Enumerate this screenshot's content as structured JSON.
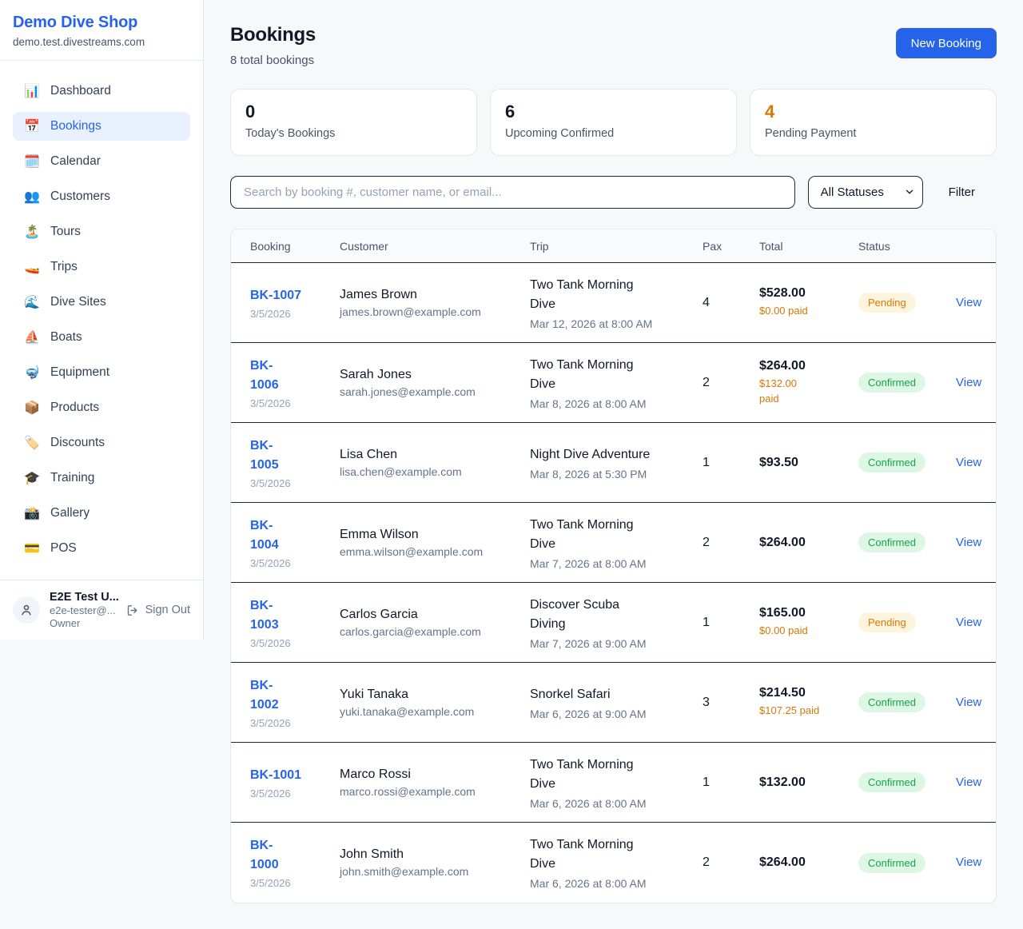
{
  "sidebar": {
    "shop_name": "Demo Dive Shop",
    "shop_domain": "demo.test.divestreams.com",
    "items": [
      {
        "icon": "📊",
        "icon_name": "dashboard-chart-icon",
        "label": "Dashboard",
        "active": false
      },
      {
        "icon": "📅",
        "icon_name": "bookings-calendar-icon",
        "label": "Bookings",
        "active": true
      },
      {
        "icon": "🗓️",
        "icon_name": "calendar-icon",
        "label": "Calendar",
        "active": false
      },
      {
        "icon": "👥",
        "icon_name": "customers-people-icon",
        "label": "Customers",
        "active": false
      },
      {
        "icon": "🏝️",
        "icon_name": "tours-island-icon",
        "label": "Tours",
        "active": false
      },
      {
        "icon": "🚤",
        "icon_name": "trips-speedboat-icon",
        "label": "Trips",
        "active": false
      },
      {
        "icon": "🌊",
        "icon_name": "dive-sites-wave-icon",
        "label": "Dive Sites",
        "active": false
      },
      {
        "icon": "⛵",
        "icon_name": "boats-sailboat-icon",
        "label": "Boats",
        "active": false
      },
      {
        "icon": "🤿",
        "icon_name": "equipment-mask-icon",
        "label": "Equipment",
        "active": false
      },
      {
        "icon": "📦",
        "icon_name": "products-package-icon",
        "label": "Products",
        "active": false
      },
      {
        "icon": "🏷️",
        "icon_name": "discounts-tag-icon",
        "label": "Discounts",
        "active": false
      },
      {
        "icon": "🎓",
        "icon_name": "training-gradcap-icon",
        "label": "Training",
        "active": false
      },
      {
        "icon": "📸",
        "icon_name": "gallery-camera-icon",
        "label": "Gallery",
        "active": false
      },
      {
        "icon": "💳",
        "icon_name": "pos-card-icon",
        "label": "POS",
        "active": false
      }
    ],
    "user": {
      "name": "E2E Test U...",
      "email": "e2e-tester@...",
      "role": "Owner",
      "sign_out_label": "Sign Out"
    }
  },
  "header": {
    "title": "Bookings",
    "subtitle": "8 total bookings",
    "new_booking_label": "New Booking"
  },
  "stats": [
    {
      "value": "0",
      "label": "Today's Bookings"
    },
    {
      "value": "6",
      "label": "Upcoming Confirmed"
    },
    {
      "value": "4",
      "label": "Pending Payment"
    }
  ],
  "filters": {
    "search_placeholder": "Search by booking #, customer name, or email...",
    "status_select_value": "All Statuses",
    "filter_label": "Filter"
  },
  "table": {
    "headers": [
      "Booking",
      "Customer",
      "Trip",
      "Pax",
      "Total",
      "Status"
    ],
    "view_label": "View",
    "rows": [
      {
        "number": "BK-1007",
        "date": "3/5/2026",
        "customer_name": "James Brown",
        "customer_email": "james.brown@example.com",
        "trip_name": "Two Tank Morning\nDive",
        "trip_datetime": "Mar 12, 2026 at 8:00 AM",
        "pax": "4",
        "total": "$528.00",
        "paid": "$0.00 paid",
        "status": "Pending"
      },
      {
        "number": "BK-\n1006",
        "date": "3/5/2026",
        "customer_name": "Sarah Jones",
        "customer_email": "sarah.jones@example.com",
        "trip_name": "Two Tank Morning\nDive",
        "trip_datetime": "Mar 8, 2026 at 8:00 AM",
        "pax": "2",
        "total": "$264.00",
        "paid": "$132.00\npaid",
        "status": "Confirmed"
      },
      {
        "number": "BK-\n1005",
        "date": "3/5/2026",
        "customer_name": "Lisa Chen",
        "customer_email": "lisa.chen@example.com",
        "trip_name": "Night Dive Adventure",
        "trip_datetime": "Mar 8, 2026 at 5:30 PM",
        "pax": "1",
        "total": "$93.50",
        "paid": "",
        "status": "Confirmed"
      },
      {
        "number": "BK-\n1004",
        "date": "3/5/2026",
        "customer_name": "Emma Wilson",
        "customer_email": "emma.wilson@example.com",
        "trip_name": "Two Tank Morning\nDive",
        "trip_datetime": "Mar 7, 2026 at 8:00 AM",
        "pax": "2",
        "total": "$264.00",
        "paid": "",
        "status": "Confirmed"
      },
      {
        "number": "BK-\n1003",
        "date": "3/5/2026",
        "customer_name": "Carlos Garcia",
        "customer_email": "carlos.garcia@example.com",
        "trip_name": "Discover Scuba\nDiving",
        "trip_datetime": "Mar 7, 2026 at 9:00 AM",
        "pax": "1",
        "total": "$165.00",
        "paid": "$0.00 paid",
        "status": "Pending"
      },
      {
        "number": "BK-\n1002",
        "date": "3/5/2026",
        "customer_name": "Yuki Tanaka",
        "customer_email": "yuki.tanaka@example.com",
        "trip_name": "Snorkel Safari",
        "trip_datetime": "Mar 6, 2026 at 9:00 AM",
        "pax": "3",
        "total": "$214.50",
        "paid": "$107.25 paid",
        "status": "Confirmed"
      },
      {
        "number": "BK-1001",
        "date": "3/5/2026",
        "customer_name": "Marco Rossi",
        "customer_email": "marco.rossi@example.com",
        "trip_name": "Two Tank Morning\nDive",
        "trip_datetime": "Mar 6, 2026 at 8:00 AM",
        "pax": "1",
        "total": "$132.00",
        "paid": "",
        "status": "Confirmed"
      },
      {
        "number": "BK-\n1000",
        "date": "3/5/2026",
        "customer_name": "John Smith",
        "customer_email": "john.smith@example.com",
        "trip_name": "Two Tank Morning\nDive",
        "trip_datetime": "Mar 6, 2026 at 8:00 AM",
        "pax": "2",
        "total": "$264.00",
        "paid": "",
        "status": "Confirmed"
      }
    ]
  },
  "colors": {
    "brand_blue": "#2563eb",
    "accent_orange": "#d97706",
    "confirmed_green": "#16a34a",
    "pending_badge_bg": "#fdf4dd",
    "confirmed_badge_bg": "#ddf7e4",
    "row_border_dark": "#1f2937",
    "page_bg": "#f7f8fa"
  }
}
